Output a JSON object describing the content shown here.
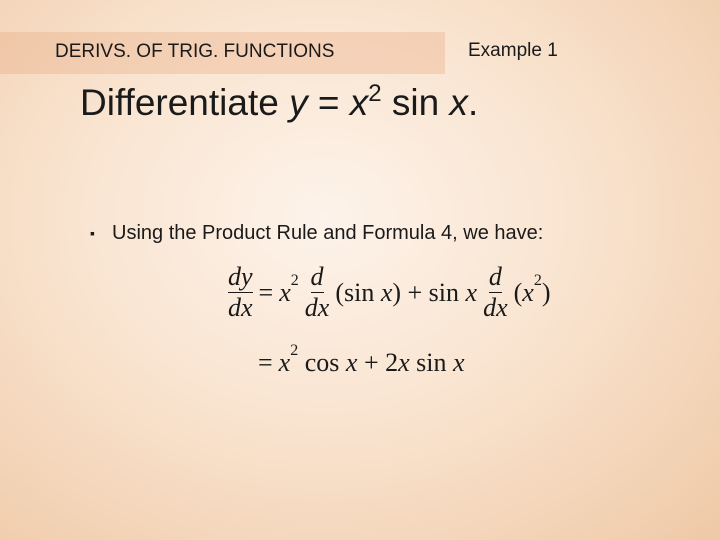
{
  "header": {
    "section": "DERIVS. OF TRIG. FUNCTIONS",
    "label": "Example 1"
  },
  "title": {
    "parts": [
      "Differentiate ",
      "y",
      " = ",
      "x",
      "2",
      " sin ",
      "x",
      "."
    ]
  },
  "bullet": {
    "text": "Using the Product Rule and Formula 4, we have:"
  },
  "equation": {
    "line1": [
      "dy",
      "dx",
      "=",
      "x",
      "2",
      "d",
      "dx",
      "(sin ",
      "x",
      ") + sin ",
      "x",
      "d",
      "dx",
      "(",
      "x",
      "2",
      ")"
    ],
    "line2": [
      "=",
      "x",
      "2",
      " cos ",
      "x",
      " + 2",
      "x",
      " sin ",
      "x"
    ]
  }
}
